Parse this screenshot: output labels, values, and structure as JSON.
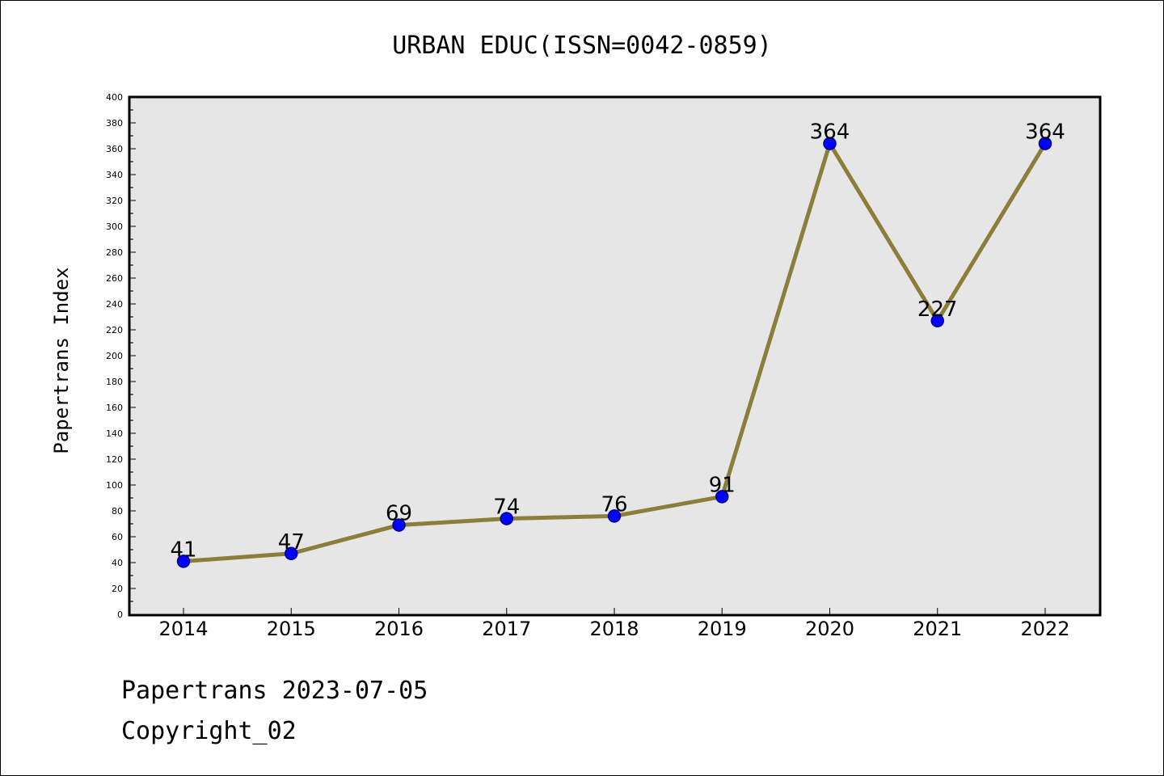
{
  "footer": {
    "line1": "Papertrans 2023-07-05",
    "line2": "Copyright_02"
  },
  "chart_data": {
    "type": "line",
    "title": "URBAN EDUC(ISSN=0042-0859)",
    "xlabel": "",
    "ylabel": "Papertrans Index",
    "categories": [
      "2014",
      "2015",
      "2016",
      "2017",
      "2018",
      "2019",
      "2020",
      "2021",
      "2022"
    ],
    "series": [
      {
        "values": [
          41,
          47,
          69,
          74,
          76,
          91,
          364,
          227,
          364
        ]
      }
    ],
    "data_labels": [
      "41",
      "47",
      "69",
      "74",
      "76",
      "91",
      "364",
      "227",
      "364"
    ],
    "ylim": [
      0,
      400
    ],
    "yticks": [
      "0",
      "20",
      "40",
      "60",
      "80",
      "100",
      "120",
      "140",
      "160",
      "180",
      "200",
      "220",
      "240",
      "260",
      "280",
      "300",
      "320",
      "340",
      "360",
      "380",
      "400"
    ],
    "grid": false,
    "legend": "none",
    "colors": {
      "line": "#8B7D3A",
      "marker": "#0000FF",
      "marker_edge": "#00008B",
      "plot_background": "#E6E6E6"
    }
  }
}
